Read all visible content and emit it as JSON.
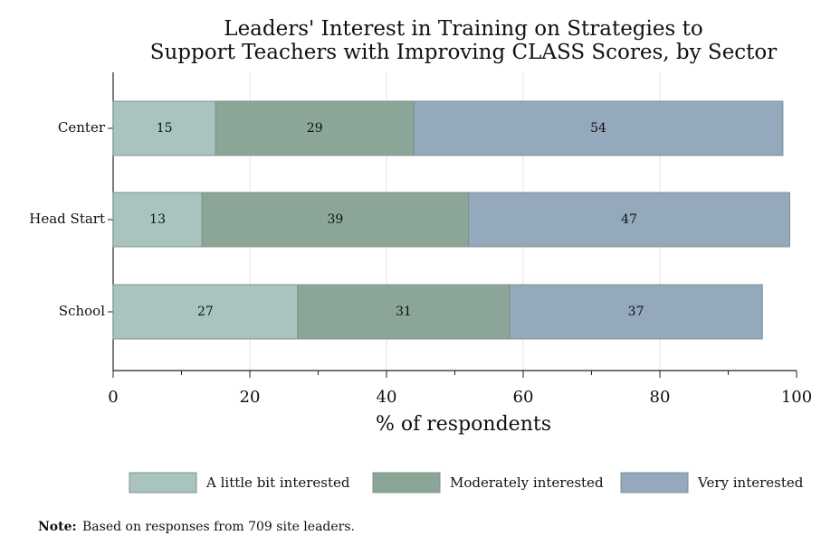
{
  "chart_data": {
    "type": "stacked_barh",
    "title": [
      "Leaders' Interest in Training on Strategies to",
      "Support Teachers with Improving CLASS Scores, by Sector"
    ],
    "xlabel": "% of respondents",
    "categories": [
      "Center",
      "Head Start",
      "School"
    ],
    "series": [
      {
        "name": "A little bit interested",
        "color": "#a9c4bf",
        "values": [
          15,
          13,
          27
        ]
      },
      {
        "name": "Moderately interested",
        "color": "#8ba697",
        "values": [
          29,
          39,
          31
        ]
      },
      {
        "name": "Very interested",
        "color": "#95a9bd",
        "values": [
          54,
          47,
          37
        ]
      }
    ],
    "xlim": [
      0,
      100
    ],
    "xticks": [
      0,
      20,
      40,
      60,
      80,
      100
    ],
    "xminor_ticks": [
      10,
      30,
      50,
      70,
      90
    ],
    "grid": true,
    "legend": "bottom",
    "note_label": "Note:",
    "note": "Based on responses from 709 site leaders."
  }
}
